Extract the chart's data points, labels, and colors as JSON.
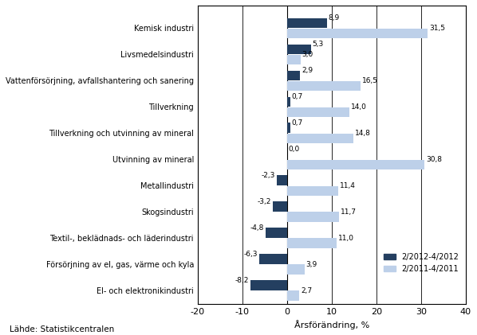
{
  "categories": [
    "El- och elektronikindustri",
    "Försörjning av el, gas, värme och kyla",
    "Textil-, beklädnads- och läderindustri",
    "Skogsindustri",
    "Metallindustri",
    "Utvinning av mineral",
    "Tillverkning och utvinning av mineral",
    "Tillverkning",
    "Vattenförsörjning, avfallshantering och sanering",
    "Livsmedelsindustri",
    "Kemisk industri"
  ],
  "values_2012": [
    -8.2,
    -6.3,
    -4.8,
    -3.2,
    -2.3,
    0.0,
    0.7,
    0.7,
    2.9,
    5.3,
    8.9
  ],
  "values_2011": [
    2.7,
    3.9,
    11.0,
    11.7,
    11.4,
    30.8,
    14.8,
    14.0,
    16.5,
    3.0,
    31.5
  ],
  "color_2012": "#243F60",
  "color_2011": "#BDD0E9",
  "xlabel": "Årsförändring, %",
  "legend_2012": "2/2012-4/2012",
  "legend_2011": "2/2011-4/2011",
  "footnote": "Lähde: Statistikcentralen",
  "xlim": [
    -20,
    40
  ],
  "xticks": [
    -20,
    -10,
    0,
    10,
    20,
    30,
    40
  ],
  "gridlines": [
    -10,
    10,
    20,
    30
  ]
}
